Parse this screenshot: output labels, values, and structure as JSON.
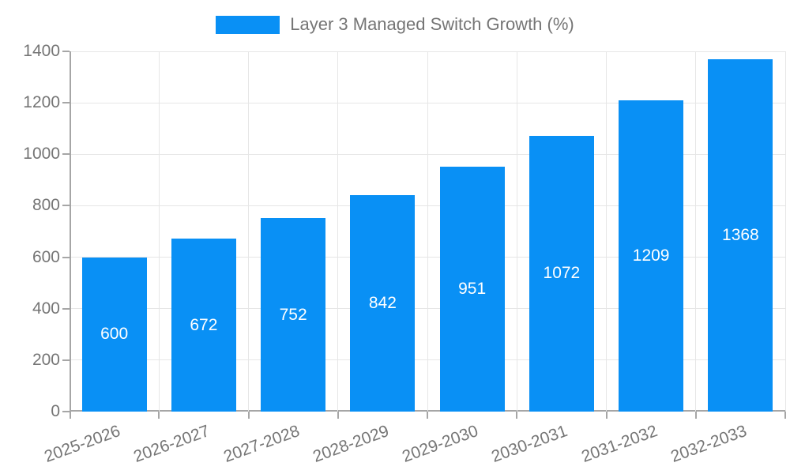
{
  "colors": {
    "bar": "#0990f5",
    "axis": "#a6a6a6",
    "grid": "#e6e6e6",
    "tick_label": "#757575",
    "value_label": "#ffffff"
  },
  "chart_data": {
    "type": "bar",
    "title": "Layer 3 Managed Switch Growth (%)",
    "categories": [
      "2025-2026",
      "2026-2027",
      "2027-2028",
      "2028-2029",
      "2029-2030",
      "2030-2031",
      "2031-2032",
      "2032-2033"
    ],
    "values": [
      600,
      672,
      752,
      842,
      951,
      1072,
      1209,
      1368
    ],
    "xlabel": "",
    "ylabel": "",
    "ylim": [
      0,
      1400
    ],
    "yticks": [
      0,
      200,
      400,
      600,
      800,
      1000,
      1200,
      1400
    ],
    "grid": "on",
    "legend_position": "top-center",
    "value_labels": "inside-center"
  }
}
